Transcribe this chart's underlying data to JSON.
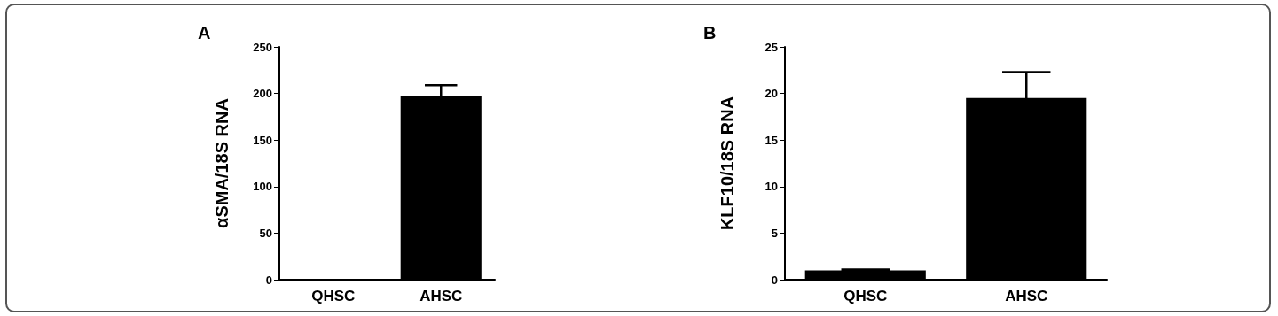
{
  "chart_data": [
    {
      "type": "bar",
      "title": "A",
      "ylabel": "αSMA/18S RNA",
      "categories": [
        "QHSC",
        "AHSC"
      ],
      "values": [
        1,
        197
      ],
      "errors": [
        null,
        12
      ],
      "color": "#000000",
      "ylim": [
        0,
        250
      ],
      "yticks": [
        0,
        50,
        100,
        150,
        200,
        250
      ],
      "grid": false
    },
    {
      "type": "bar",
      "title": "B",
      "ylabel": "KLF10/18S RNA",
      "categories": [
        "QHSC",
        "AHSC"
      ],
      "values": [
        1,
        19.5
      ],
      "errors": [
        0.1,
        2.8
      ],
      "color": "#000000",
      "ylim": [
        0,
        25
      ],
      "yticks": [
        0,
        5,
        10,
        15,
        20,
        25
      ],
      "grid": false
    }
  ]
}
